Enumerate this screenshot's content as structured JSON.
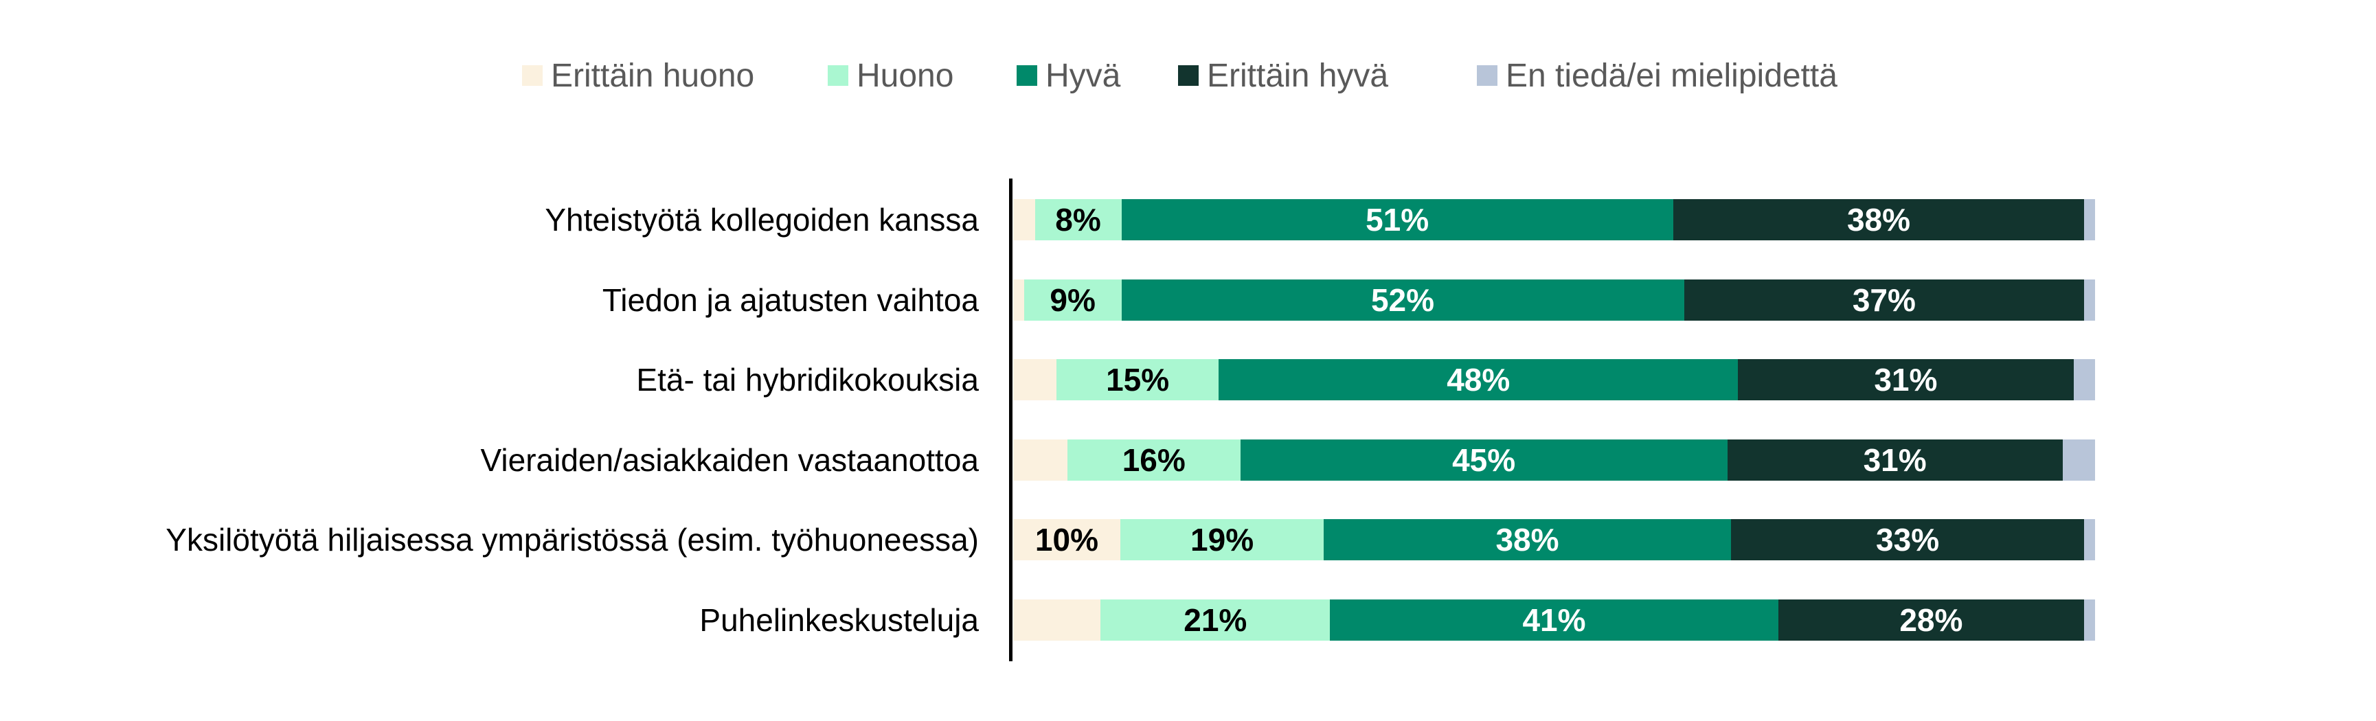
{
  "chart_data": {
    "type": "bar",
    "orientation": "horizontal",
    "stacked": true,
    "percent": true,
    "legend_position": "top",
    "grid": false,
    "categories": [
      "Yhteistyötä kollegoiden kanssa",
      "Tiedon ja ajatusten vaihtoa",
      "Etä- tai hybridikokouksia",
      "Vieraiden/asiakkaiden vastaanottoa",
      "Yksilötyötä hiljaisessa ympäristössä (esim. työhuoneessa)",
      "Puhelinkeskusteluja"
    ],
    "series": [
      {
        "name": "Erittäin huono",
        "color": "#FBF1DF",
        "label_color": "#000000",
        "values": [
          2,
          1,
          4,
          5,
          10,
          8
        ],
        "labels": [
          "",
          "",
          "",
          "",
          "10%",
          ""
        ]
      },
      {
        "name": "Huono",
        "color": "#AAF7D1",
        "label_color": "#000000",
        "values": [
          8,
          9,
          15,
          16,
          19,
          21
        ],
        "labels": [
          "8%",
          "9%",
          "15%",
          "16%",
          "19%",
          "21%"
        ]
      },
      {
        "name": "Hyvä",
        "color": "#00896A",
        "label_color": "#FFFFFF",
        "values": [
          51,
          52,
          48,
          45,
          38,
          41
        ],
        "labels": [
          "51%",
          "52%",
          "48%",
          "45%",
          "38%",
          "41%"
        ]
      },
      {
        "name": "Erittäin hyvä",
        "color": "#12342E",
        "label_color": "#FFFFFF",
        "values": [
          38,
          37,
          31,
          31,
          33,
          28
        ],
        "labels": [
          "38%",
          "37%",
          "31%",
          "31%",
          "33%",
          "28%"
        ]
      },
      {
        "name": "En tiedä/ei mielipidettä",
        "color": "#B8C5D9",
        "label_color": "#000000",
        "values": [
          1,
          1,
          2,
          3,
          1,
          1
        ],
        "labels": [
          "",
          "",
          "",
          "",
          "",
          ""
        ]
      }
    ]
  }
}
